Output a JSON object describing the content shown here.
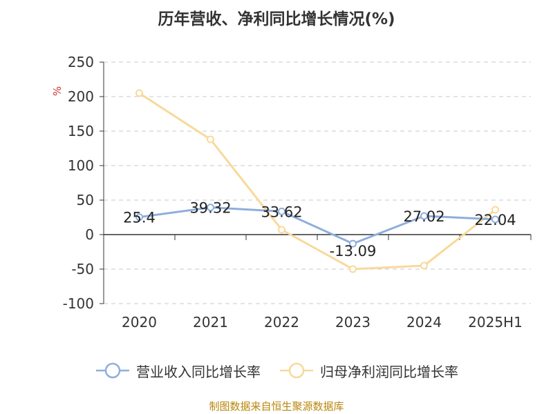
{
  "chart_data": {
    "type": "line",
    "title": "历年营收、净利同比增长情况(%)",
    "ylabel": "%",
    "xlabel": "",
    "categories": [
      "2020",
      "2021",
      "2022",
      "2023",
      "2024",
      "2025H1"
    ],
    "ylim": [
      -100,
      250
    ],
    "yticks": [
      -100,
      -50,
      0,
      50,
      100,
      150,
      200,
      250
    ],
    "grid": true,
    "legend_position": "bottom",
    "series": [
      {
        "name": "营业收入同比增长率",
        "color": "#8eaedb",
        "values": [
          25.4,
          39.32,
          33.62,
          -13.09,
          27.02,
          22.04
        ],
        "data_labels": [
          "25.4",
          "39.32",
          "33.62",
          "-13.09",
          "27.02",
          "22.04"
        ]
      },
      {
        "name": "归母净利润同比增长率",
        "color": "#f8d99a",
        "values": [
          205,
          138,
          7,
          -50,
          -45,
          36
        ]
      }
    ]
  },
  "source": "制图数据来自恒生聚源数据库"
}
